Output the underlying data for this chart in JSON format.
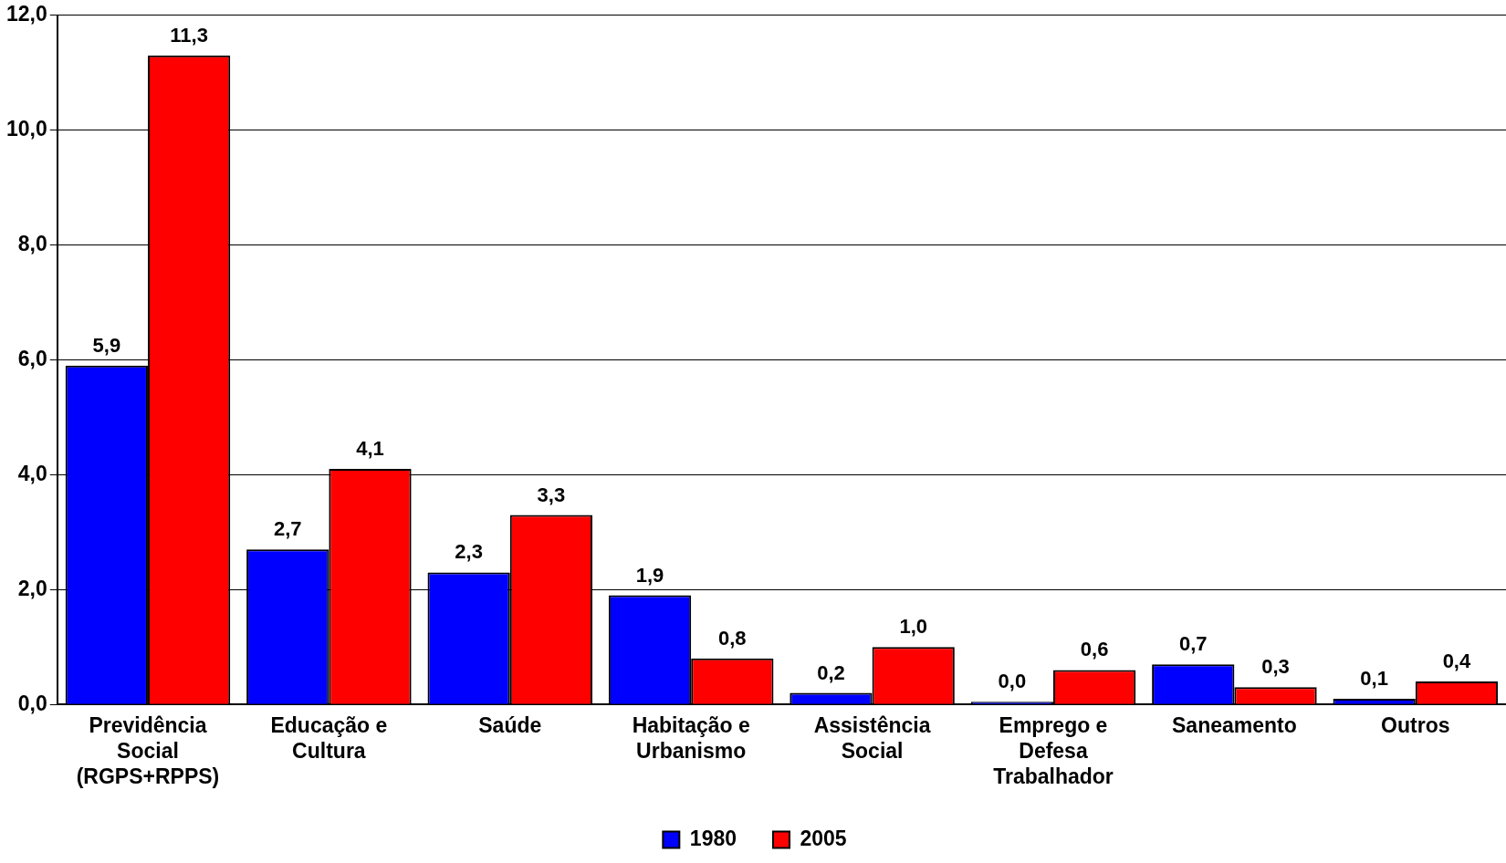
{
  "chart_data": {
    "type": "bar",
    "categories": [
      "Previdência Social (RGPS+RPPS)",
      "Educação e Cultura",
      "Saúde",
      "Habitação e Urbanismo",
      "Assistência Social",
      "Emprego e Defesa Trabalhador",
      "Saneamento",
      "Outros"
    ],
    "series": [
      {
        "name": "1980",
        "color": "#0000ff",
        "values": [
          5.9,
          2.7,
          2.3,
          1.9,
          0.2,
          0.0,
          0.7,
          0.1
        ],
        "value_labels": [
          "5,9",
          "2,7",
          "2,3",
          "1,9",
          "0,2",
          "0,0",
          "0,7",
          "0,1"
        ]
      },
      {
        "name": "2005",
        "color": "#ff0000",
        "values": [
          11.3,
          4.1,
          3.3,
          0.8,
          1.0,
          0.6,
          0.3,
          0.4
        ],
        "value_labels": [
          "11,3",
          "4,1",
          "3,3",
          "0,8",
          "1,0",
          "0,6",
          "0,3",
          "0,4"
        ]
      }
    ],
    "ylim": [
      0,
      12
    ],
    "yticks": [
      {
        "value": 0,
        "label": "0,0"
      },
      {
        "value": 2,
        "label": "2,0"
      },
      {
        "value": 4,
        "label": "4,0"
      },
      {
        "value": 6,
        "label": "6,0"
      },
      {
        "value": 8,
        "label": "8,0"
      },
      {
        "value": 10,
        "label": "10,0"
      },
      {
        "value": 12,
        "label": "12,0"
      }
    ],
    "grid": "y",
    "legend": "bottom"
  }
}
